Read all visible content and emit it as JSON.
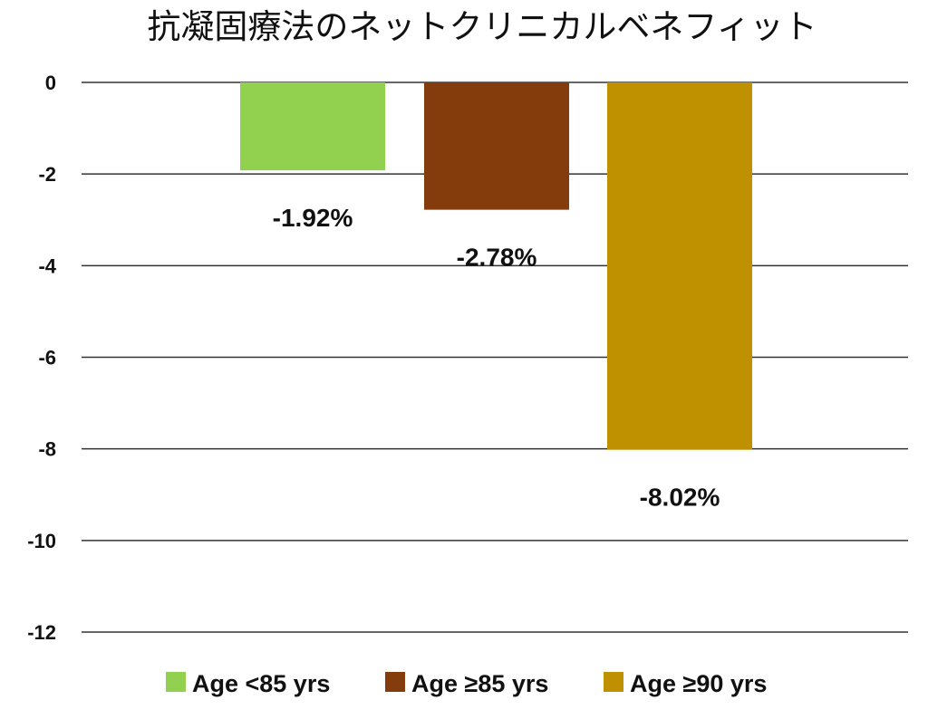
{
  "chart_data": {
    "type": "bar",
    "title": "抗凝固療法のネットクリニカルベネフィット",
    "xlabel": "",
    "ylabel": "",
    "ylim": [
      -12,
      0
    ],
    "yticks": [
      0,
      -2,
      -4,
      -6,
      -8,
      -10,
      -12
    ],
    "grid": true,
    "legend_position": "bottom",
    "categories": [
      "Age <85 yrs",
      "Age ≥85 yrs",
      "Age ≥90 yrs"
    ],
    "values": [
      -1.92,
      -2.78,
      -8.02
    ],
    "data_labels": [
      "-1.92%",
      "-2.78%",
      "-8.02%"
    ],
    "colors": [
      "#92d050",
      "#843c0c",
      "#bf9000"
    ]
  }
}
